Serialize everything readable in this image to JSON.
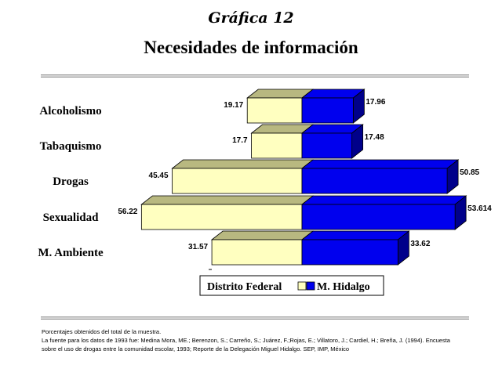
{
  "header": {
    "subtitle": "Gráfica 12",
    "title": "Necesidades de información"
  },
  "chart_data": {
    "type": "bar",
    "orientation": "horizontal-diverging",
    "categories": [
      "Alcoholismo",
      "Tabaquismo",
      "Drogas",
      "Sexualidad",
      "M. Ambiente"
    ],
    "series": [
      {
        "name": "Distrito Federal",
        "values": [
          19.17,
          17.7,
          45.45,
          56.22,
          31.57
        ],
        "labels": [
          "19.17",
          "17.7",
          "45.45",
          "56.22",
          "31.57"
        ],
        "color": "#FFFFC0",
        "side_color": "#B8B880",
        "direction": "left"
      },
      {
        "name": "M. Hidalgo",
        "values": [
          17.96,
          17.48,
          50.85,
          53.614,
          33.62
        ],
        "labels": [
          "17.96",
          "17.48",
          "50.85",
          "53.614",
          "33.62"
        ],
        "color": "#0000EE",
        "side_color": "#00008A",
        "direction": "right"
      }
    ],
    "legend_position": "bottom",
    "three_d": true,
    "grid": false
  },
  "footnotes": {
    "line1": "Porcentajes obtenidos del total de la muestra.",
    "line2": "La fuente para los datos de 1993 fue: Medina Mora, ME.; Berenzon, S.; Carreño, S.; Juárez, F.;Rojas, E.; Villatoro, J.; Cardiel, H.; Breña, J. (1994). Encuesta",
    "line3": "sobre el uso de drogas entre la comunidad escolar, 1993; Reporte de la Delegación Miguel Hidalgo. SEP, IMP, México"
  }
}
